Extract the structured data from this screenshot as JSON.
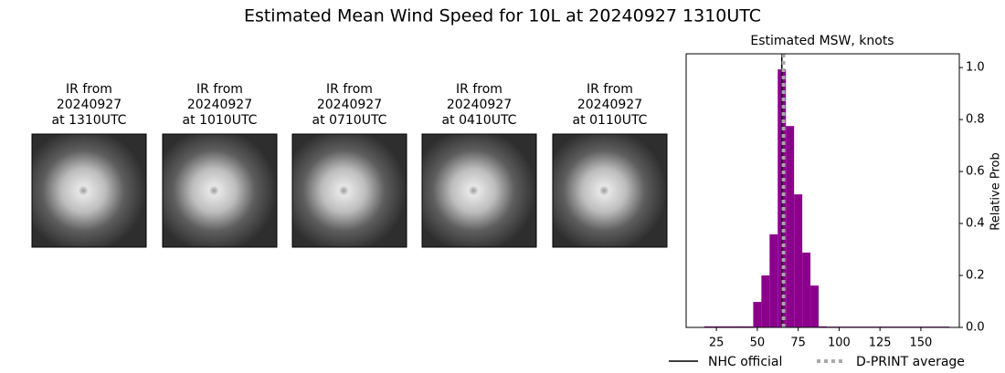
{
  "chart_data": {
    "type": "histogram",
    "title": "Estimated Mean Wind Speed for 10L at 20240927 1310UTC",
    "subtitle": "Estimated MSW, knots",
    "ylabel": "Relative Prob",
    "panels": [
      {
        "lines": [
          "IR from",
          "20240927",
          "at 1310UTC"
        ]
      },
      {
        "lines": [
          "IR from",
          "20240927",
          "at 1010UTC"
        ]
      },
      {
        "lines": [
          "IR from",
          "20240927",
          "at 0710UTC"
        ]
      },
      {
        "lines": [
          "IR from",
          "20240927",
          "at 0410UTC"
        ]
      },
      {
        "lines": [
          "IR from",
          "20240927",
          "at 0110UTC"
        ]
      }
    ],
    "bins": [
      17.5,
      22.5,
      27.5,
      32.5,
      37.5,
      42.5,
      47.5,
      52.5,
      57.5,
      62.5,
      67.5,
      72.5,
      77.5,
      82.5,
      87.5,
      92.5,
      97.5,
      102.5,
      107.5,
      112.5,
      117.5,
      122.5,
      127.5,
      132.5,
      137.5,
      142.5,
      147.5,
      152.5,
      157.5,
      162.5,
      167.5
    ],
    "counts": [
      0.004,
      0.004,
      0.004,
      0.004,
      0.004,
      0.004,
      0.098,
      0.2,
      0.358,
      0.993,
      0.775,
      0.512,
      0.288,
      0.161,
      0.004,
      0.003,
      0.003,
      0.003,
      0.003,
      0.003,
      0.003,
      0.003,
      0.003,
      0.003,
      0.003,
      0.003,
      0.003,
      0.003,
      0.003,
      0.003
    ],
    "color": "#8b008b",
    "lines": [
      {
        "name": "NHC official",
        "value": 65,
        "color": "#000000",
        "style": "solid"
      },
      {
        "name": "D-PRINT average",
        "value": 66,
        "color": "#aaaaaa",
        "style": "dotted"
      }
    ],
    "xlim": [
      6.5,
      173.5
    ],
    "ylim": [
      0,
      1.053
    ],
    "xticks": [
      25,
      50,
      75,
      100,
      125,
      150
    ],
    "yticks": [
      {
        "value": 0,
        "label": "0.0"
      },
      {
        "value": 0.2,
        "label": "0.2"
      },
      {
        "value": 0.4,
        "label": "0.4"
      },
      {
        "value": 0.6,
        "label": "0.6"
      },
      {
        "value": 0.8,
        "label": "0.8"
      },
      {
        "value": 1.0,
        "label": "1.0"
      }
    ]
  }
}
